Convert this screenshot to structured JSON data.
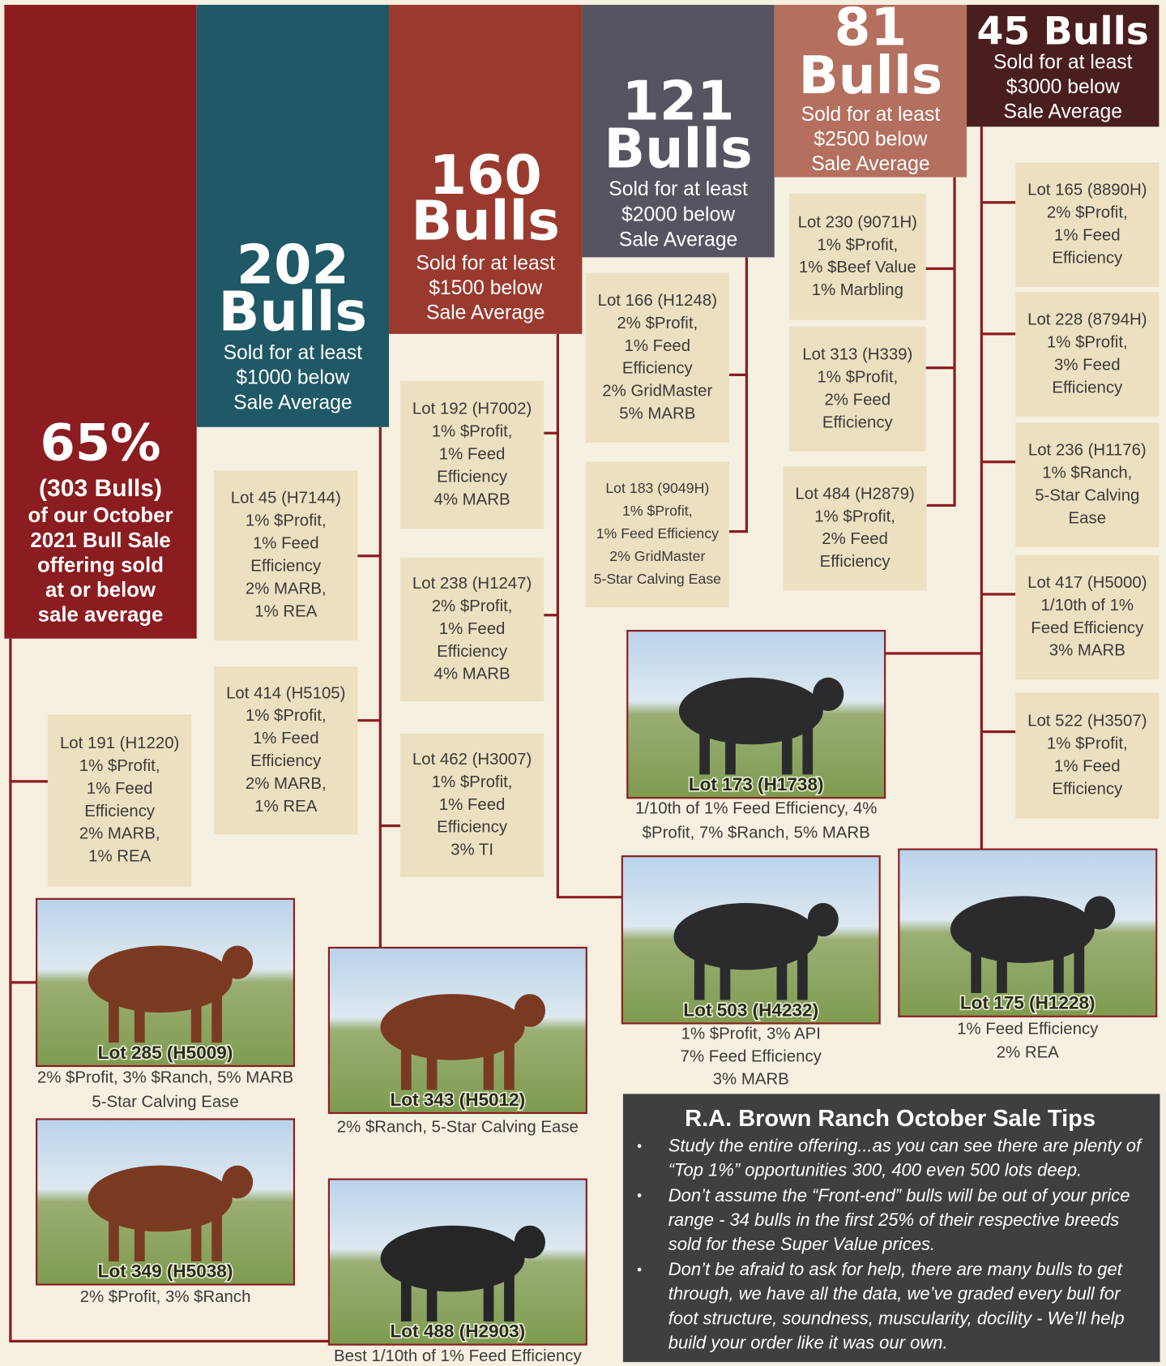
{
  "header": {
    "columns": [
      {
        "number": "65%",
        "unit": "(303 Bulls)",
        "lines": [
          "of our October",
          "2021 Bull Sale",
          "offering sold",
          "at or below",
          "sale average"
        ]
      },
      {
        "number": "202",
        "unit": "Bulls",
        "lines": [
          "Sold for at least",
          "$1000 below",
          "Sale Average"
        ]
      },
      {
        "number": "160",
        "unit": "Bulls",
        "lines": [
          "Sold for at least",
          "$1500 below",
          "Sale Average"
        ]
      },
      {
        "number": "121",
        "unit": "Bulls",
        "lines": [
          "Sold for at least",
          "$2000 below",
          "Sale Average"
        ]
      },
      {
        "number": "81",
        "unit": "Bulls",
        "lines": [
          "Sold for at least",
          "$2500 below",
          "Sale Average"
        ]
      },
      {
        "number": "45 Bulls",
        "lines": [
          "Sold for at least",
          "$3000 below",
          "Sale Average"
        ]
      }
    ]
  },
  "cards": [
    {
      "lines": [
        "Lot 191 (H1220)",
        "1% $Profit,",
        "1% Feed",
        "Efficiency",
        "2% MARB,",
        "1% REA"
      ]
    },
    {
      "lines": [
        "Lot 45 (H7144)",
        "1% $Profit,",
        "1% Feed",
        "Efficiency",
        "2% MARB,",
        "1% REA"
      ]
    },
    {
      "lines": [
        "Lot 414 (H5105)",
        "1% $Profit,",
        "1% Feed",
        "Efficiency",
        "2% MARB,",
        "1% REA"
      ]
    },
    {
      "lines": [
        "Lot 192 (H7002)",
        "1% $Profit,",
        "1% Feed",
        "Efficiency",
        "4% MARB"
      ]
    },
    {
      "lines": [
        "Lot 238 (H1247)",
        "2% $Profit,",
        "1% Feed",
        "Efficiency",
        "4% MARB"
      ]
    },
    {
      "lines": [
        "Lot 462 (H3007)",
        "1% $Profit,",
        "1% Feed",
        "Efficiency",
        "3% TI"
      ]
    },
    {
      "lines": [
        "Lot 166 (H1248)",
        "2% $Profit,",
        "1% Feed",
        "Efficiency",
        "2% GridMaster",
        "5% MARB"
      ]
    },
    {
      "lines": [
        "Lot 183 (9049H)",
        "1% $Profit,",
        "1% Feed Efficiency",
        "2% GridMaster",
        "5-Star Calving Ease"
      ]
    },
    {
      "lines": [
        "Lot 230 (9071H)",
        "1% $Profit,",
        "1% $Beef Value",
        "1% Marbling"
      ]
    },
    {
      "lines": [
        "Lot 313 (H339)",
        "1% $Profit,",
        "2% Feed",
        "Efficiency"
      ]
    },
    {
      "lines": [
        "Lot 484 (H2879)",
        "1% $Profit,",
        "2% Feed",
        "Efficiency"
      ]
    },
    {
      "lines": [
        "Lot 165 (8890H)",
        "2% $Profit,",
        "1% Feed",
        "Efficiency"
      ]
    },
    {
      "lines": [
        "Lot 228 (8794H)",
        "1% $Profit,",
        "3% Feed",
        "Efficiency"
      ]
    },
    {
      "lines": [
        "Lot 236 (H1176)",
        "1% $Ranch,",
        "5-Star Calving",
        "Ease"
      ]
    },
    {
      "lines": [
        "Lot 417 (H5000)",
        "1/10th of 1%",
        "Feed Efficiency",
        "3% MARB"
      ]
    },
    {
      "lines": [
        "Lot 522 (H3507)",
        "1% $Profit,",
        "1% Feed",
        "Efficiency"
      ]
    }
  ],
  "photos": [
    {
      "label": "Lot 285 (H5009)",
      "caption": [
        "2% $Profit, 3% $Ranch, 5% MARB",
        "5-Star Calving Ease"
      ]
    },
    {
      "label": "Lot 349 (H5038)",
      "caption": [
        "2% $Profit, 3% $Ranch"
      ]
    },
    {
      "label": "Lot 343 (H5012)",
      "caption": [
        "2% $Ranch,  5-Star Calving Ease"
      ]
    },
    {
      "label": "Lot 488 (H2903)",
      "caption": [
        "Best 1/10th of 1% Feed Efficiency"
      ]
    },
    {
      "label": "Lot 173 (H1738)",
      "caption": [
        "1/10th of 1%  Feed Efficiency, 4%",
        "$Profit, 7% $Ranch, 5% MARB"
      ]
    },
    {
      "label": "Lot 503 (H4232)",
      "caption": [
        "1% $Profit, 3% API",
        "7% Feed Efficiency",
        "3% MARB"
      ]
    },
    {
      "label": "Lot 175 (H1228)",
      "caption": [
        "1% Feed Efficiency",
        "2% REA"
      ]
    }
  ],
  "tips": {
    "title": "R.A. Brown Ranch October Sale Tips",
    "items": [
      {
        "lines": [
          "Study the entire offering...as you can see there are  plenty of",
          "“Top 1%” opportunities 300, 400 even 500 lots deep."
        ]
      },
      {
        "lines": [
          "Don’t assume the “Front-end” bulls will be out of your price",
          "range - 34 bulls in the first 25% of their respective breeds",
          "sold for these Super Value prices."
        ]
      },
      {
        "lines": [
          "Don’t be afraid to ask for help, there are many bulls to get",
          "through, we have all the data, we’ve graded every bull for",
          "foot structure, soundness, muscularity, docility - We’ll help",
          "build your order like it was our own."
        ]
      }
    ]
  }
}
